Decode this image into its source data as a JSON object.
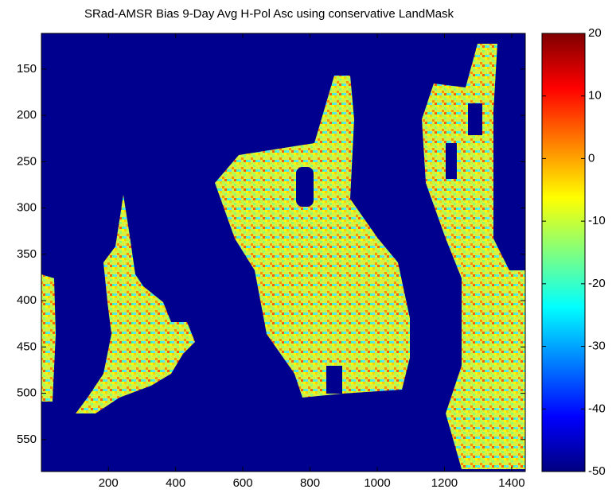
{
  "chart_data": {
    "type": "heatmap",
    "title": "SRad-AMSR Bias 9-Day Avg H-Pol Asc using conservative LandMask",
    "xlim": [
      0.5,
      1440.5
    ],
    "xticks": [
      200,
      400,
      600,
      800,
      1000,
      1200,
      1400
    ],
    "ylim": [
      111.5,
      584.5
    ],
    "yticks": [
      150,
      200,
      250,
      300,
      350,
      400,
      450,
      500,
      550
    ],
    "clim": [
      -50,
      20
    ],
    "cticks": [
      -50,
      -40,
      -30,
      -20,
      -10,
      0,
      10,
      20
    ],
    "colormap": "jet",
    "y_reversed": true
  }
}
